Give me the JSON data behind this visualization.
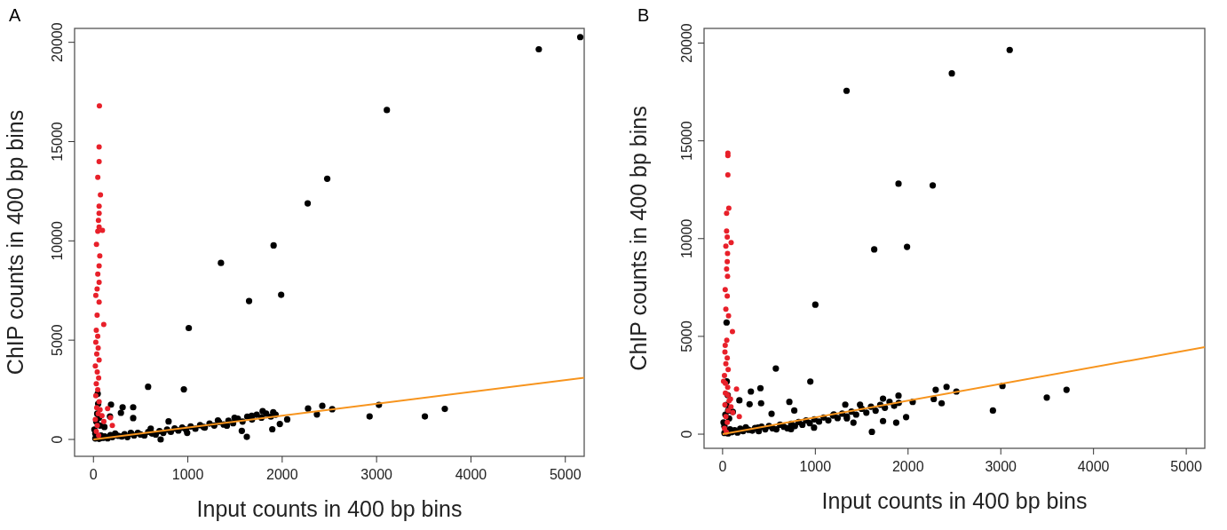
{
  "chart_data": [
    {
      "type": "scatter",
      "title": "A",
      "xlabel": "Input counts in 400 bp bins",
      "ylabel": "ChIP counts in 400 bp bins",
      "xlim": [
        -200,
        5200
      ],
      "ylim": [
        -850,
        20700
      ],
      "xticks": [
        0,
        1000,
        2000,
        3000,
        4000,
        5000
      ],
      "yticks": [
        0,
        5000,
        10000,
        15000,
        20000
      ],
      "grid": false,
      "marker": "circle",
      "series": [
        {
          "color": "#000000",
          "x": [
            5158,
            4719,
            3109,
            2477,
            2270,
            1909,
            1351,
            1989,
            1649,
            1010,
            579,
            958,
            186,
            309,
            421,
            291,
            421,
            175,
            796,
            2274,
            2425,
            2530,
            2368,
            2926,
            3025,
            3512,
            3723,
            2053,
            1975,
            1895,
            1625,
            1793,
            1905,
            1677,
            1495,
            1319,
            1414,
            1572,
            1168,
            993,
            712,
            607,
            396,
            116,
            20,
            60,
            80,
            100,
            120,
            150,
            180,
            200,
            230,
            260,
            300,
            330,
            360,
            400,
            430,
            470,
            500,
            540,
            580,
            620,
            660,
            700,
            740,
            780,
            820,
            860,
            900,
            940,
            980,
            1030,
            1080,
            1130,
            1180,
            1230,
            1280,
            1330,
            1380,
            1430,
            1480,
            1530,
            1580,
            1630,
            1680,
            1730,
            1780,
            1830,
            1880,
            1930,
            10,
            30,
            40,
            50,
            45,
            60,
            20,
            70
          ],
          "values": [
            20265,
            19650,
            16590,
            13130,
            11890,
            9770,
            8890,
            7285,
            6970,
            5610,
            2650,
            2520,
            1755,
            1620,
            1620,
            1340,
            1075,
            1160,
            910,
            1556,
            1690,
            1523,
            1258,
            1160,
            1740,
            1160,
            1540,
            1010,
            780,
            513,
            132,
            1424,
            1374,
            1192,
            1093,
            960,
            695,
            430,
            629,
            331,
            0,
            546,
            331,
            629,
            50,
            30,
            200,
            80,
            150,
            60,
            220,
            120,
            300,
            180,
            150,
            260,
            120,
            300,
            200,
            330,
            250,
            200,
            380,
            300,
            250,
            420,
            330,
            500,
            380,
            550,
            450,
            600,
            500,
            650,
            540,
            720,
            600,
            800,
            700,
            880,
            750,
            950,
            820,
            1050,
            900,
            1150,
            1000,
            1250,
            1100,
            1300,
            1150,
            1250,
            500,
            900,
            1300,
            1800,
            2300,
            1100,
            300,
            700
          ]
        },
        {
          "color": "#e8202a",
          "x": [
            63,
            60,
            60,
            46,
            74,
            60,
            60,
            53,
            60,
            95,
            46,
            32,
            67,
            60,
            46,
            60,
            39,
            25,
            60,
            109,
            39,
            30,
            45,
            25,
            50,
            35,
            60,
            20,
            40,
            55,
            30,
            45,
            25,
            60,
            35,
            50,
            20,
            40,
            30,
            55,
            70,
            90,
            110,
            150,
            180,
            200
          ],
          "values": [
            16800,
            14730,
            13990,
            13200,
            12320,
            11750,
            11390,
            11030,
            10700,
            10530,
            10480,
            9820,
            9240,
            8740,
            8330,
            7910,
            7580,
            7250,
            6920,
            5790,
            6260,
            5500,
            5200,
            4900,
            4600,
            4300,
            4000,
            3700,
            3400,
            3100,
            2800,
            2500,
            2200,
            1900,
            1600,
            1300,
            1000,
            700,
            400,
            200,
            1500,
            1200,
            900,
            1550,
            1100,
            700
          ]
        },
        {
          "type": "line",
          "color": "#f7941d",
          "x": [
            0,
            5200
          ],
          "values": [
            0,
            3110
          ],
          "marker": "none"
        }
      ]
    },
    {
      "type": "scatter",
      "title": "B",
      "xlabel": "Input counts in 400 bp bins",
      "ylabel": "ChIP counts in 400 bp bins",
      "xlim": [
        -200,
        5200
      ],
      "ylim": [
        -725,
        20750
      ],
      "xticks": [
        0,
        1000,
        2000,
        3000,
        4000,
        5000
      ],
      "yticks": [
        0,
        5000,
        10000,
        15000,
        20000
      ],
      "grid": false,
      "marker": "circle",
      "series": [
        {
          "color": "#000000",
          "x": [
            3096,
            2472,
            1337,
            1897,
            2266,
            1989,
            1635,
            1000,
            574,
            946,
            305,
            408,
            181,
            291,
            415,
            720,
            528,
            110,
            2298,
            2415,
            2521,
            2277,
            2362,
            3018,
            2915,
            3496,
            3709,
            2050,
            1897,
            1730,
            1979,
            1872,
            1610,
            1482,
            1323,
            1411,
            1340,
            1730,
            1199,
            986,
            773,
            738,
            383,
            20,
            60,
            80,
            100,
            130,
            160,
            190,
            220,
            250,
            280,
            320,
            350,
            390,
            420,
            460,
            500,
            540,
            580,
            620,
            660,
            700,
            740,
            780,
            820,
            860,
            900,
            940,
            990,
            1040,
            1090,
            1140,
            1190,
            1240,
            1290,
            1340,
            1390,
            1440,
            1500,
            1550,
            1600,
            1650,
            1700,
            1750,
            1800,
            1850,
            1900,
            10,
            30,
            40,
            55,
            45,
            60,
            20,
            70,
            43
          ],
          "values": [
            19650,
            18450,
            17560,
            12810,
            12720,
            9580,
            9450,
            6620,
            3360,
            2690,
            2180,
            2350,
            1730,
            1530,
            1580,
            1650,
            1040,
            1140,
            2270,
            2420,
            2180,
            1800,
            1580,
            2470,
            1210,
            1870,
            2270,
            1650,
            1970,
            1815,
            874,
            588,
            118,
            1510,
            1510,
            588,
            807,
            672,
            1008,
            336,
            1210,
            252,
            336,
            60,
            40,
            250,
            100,
            200,
            80,
            280,
            150,
            350,
            220,
            180,
            320,
            150,
            380,
            250,
            420,
            300,
            250,
            480,
            380,
            300,
            530,
            420,
            620,
            480,
            700,
            560,
            760,
            640,
            850,
            700,
            950,
            820,
            1050,
            900,
            1150,
            1000,
            1300,
            1100,
            1400,
            1200,
            1500,
            1350,
            1650,
            1450,
            1600,
            600,
            1000,
            1500,
            2000,
            2700,
            1200,
            400,
            800,
            5710
          ]
        },
        {
          "color": "#e8202a",
          "x": [
            57,
            57,
            57,
            67,
            43,
            43,
            50,
            92,
            35,
            53,
            50,
            43,
            53,
            28,
            50,
            35,
            64,
            106,
            28,
            45,
            25,
            50,
            35,
            60,
            20,
            10,
            55,
            30,
            85,
            25,
            60,
            35,
            50,
            20,
            40,
            30,
            55,
            70,
            90,
            110,
            150,
            180
          ],
          "values": [
            14370,
            14250,
            13260,
            11560,
            11290,
            10390,
            10080,
            9800,
            9610,
            9240,
            8820,
            8450,
            8070,
            7390,
            7060,
            6390,
            6050,
            5240,
            4540,
            4800,
            4200,
            3900,
            3600,
            3300,
            3000,
            2700,
            2400,
            2100,
            1800,
            1500,
            1200,
            900,
            600,
            300,
            100,
            2600,
            2000,
            1700,
            1400,
            1100,
            2300,
            900
          ]
        },
        {
          "type": "line",
          "color": "#f7941d",
          "x": [
            0,
            5200
          ],
          "values": [
            0,
            4450
          ],
          "marker": "none"
        }
      ]
    }
  ]
}
